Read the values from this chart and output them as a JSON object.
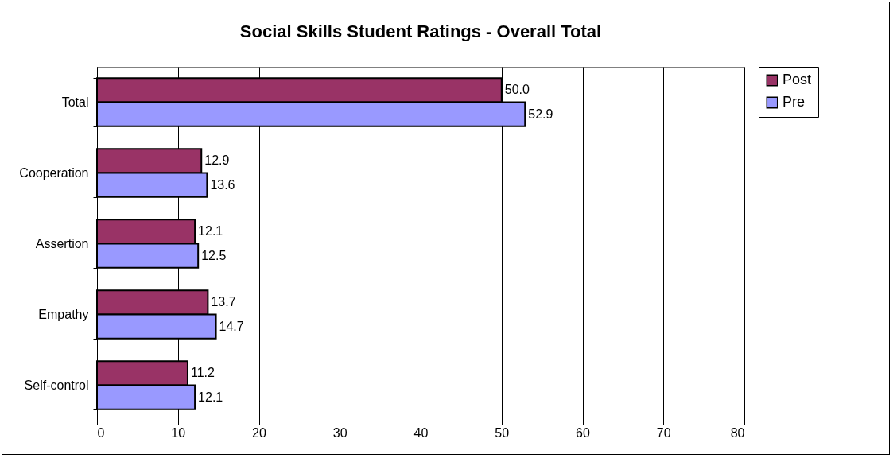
{
  "chart_data": {
    "type": "bar",
    "orientation": "horizontal",
    "title": "Social Skills Student Ratings - Overall Total",
    "categories": [
      "Total",
      "Cooperation",
      "Assertion",
      "Empathy",
      "Self-control"
    ],
    "series": [
      {
        "name": "Post",
        "color": "#993366",
        "values": [
          50.0,
          12.9,
          12.1,
          13.7,
          11.2
        ],
        "value_labels": [
          "50.0",
          "12.9",
          "12.1",
          "13.7",
          "11.2"
        ]
      },
      {
        "name": "Pre",
        "color": "#9999ff",
        "values": [
          52.9,
          13.6,
          12.5,
          14.7,
          12.1
        ],
        "value_labels": [
          "52.9",
          "13.6",
          "12.5",
          "14.7",
          "12.1"
        ]
      }
    ],
    "xlim": [
      0,
      80
    ],
    "xticks": [
      0,
      10,
      20,
      30,
      40,
      50,
      60,
      70,
      80
    ],
    "grid": "x",
    "legend": "right"
  }
}
